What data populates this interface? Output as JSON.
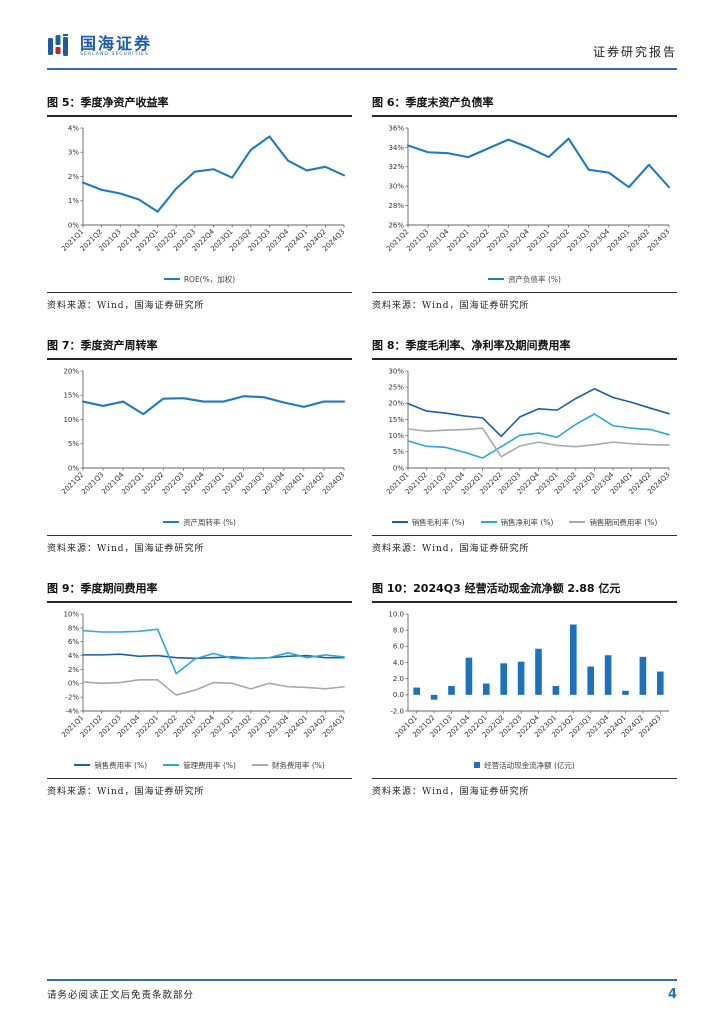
{
  "header": {
    "brand_cn": "国海证券",
    "brand_en": "SEALAND SECURITIES",
    "report_type": "证券研究报告",
    "accent_color": "#2A6DB8",
    "logo_blue": "#1B5BA8",
    "logo_red": "#C8201B"
  },
  "source_note": "资料来源：Wind，国海证券研究所",
  "footer": {
    "disclaimer": "请务必阅读正文后免责条款部分",
    "page_number": "4"
  },
  "chart_data": [
    {
      "type": "line",
      "title": "图 5：季度净资产收益率",
      "categories": [
        "2021Q1",
        "2021Q2",
        "2021Q3",
        "2021Q4",
        "2022Q1",
        "2022Q2",
        "2022Q3",
        "2022Q4",
        "2023Q1",
        "2023Q2",
        "2023Q3",
        "2023Q4",
        "2024Q1",
        "2024Q2",
        "2024Q3"
      ],
      "ylim": [
        0,
        4
      ],
      "yticks": [
        {
          "v": 0,
          "label": "0%"
        },
        {
          "v": 1,
          "label": "1%"
        },
        {
          "v": 2,
          "label": "2%"
        },
        {
          "v": 3,
          "label": "3%"
        },
        {
          "v": 4,
          "label": "4%"
        }
      ],
      "grid": false,
      "legend_position": "bottom",
      "series": [
        {
          "name": "ROE(%，加权)",
          "color": "#1F7AC4",
          "marker": "line",
          "values": [
            1.75,
            1.45,
            1.3,
            1.05,
            0.55,
            1.5,
            2.2,
            2.3,
            1.95,
            3.1,
            3.65,
            2.65,
            2.25,
            2.4,
            2.05
          ]
        }
      ]
    },
    {
      "type": "line",
      "title": "图 6：季度末资产负债率",
      "categories": [
        "2021Q2",
        "2021Q3",
        "2021Q4",
        "2022Q1",
        "2022Q2",
        "2022Q3",
        "2022Q4",
        "2023Q1",
        "2023Q2",
        "2023Q3",
        "2023Q4",
        "2024Q1",
        "2024Q2",
        "2024Q3"
      ],
      "ylim": [
        26,
        36
      ],
      "yticks": [
        {
          "v": 26,
          "label": "26%"
        },
        {
          "v": 28,
          "label": "28%"
        },
        {
          "v": 30,
          "label": "30%"
        },
        {
          "v": 32,
          "label": "32%"
        },
        {
          "v": 34,
          "label": "34%"
        },
        {
          "v": 36,
          "label": "36%"
        }
      ],
      "grid": false,
      "legend_position": "bottom",
      "series": [
        {
          "name": "资产负债率 (%)",
          "color": "#1F7AC4",
          "marker": "line",
          "values": [
            34.2,
            33.5,
            33.4,
            33.0,
            33.9,
            34.8,
            34.0,
            33.0,
            34.9,
            31.7,
            31.4,
            29.9,
            32.2,
            29.9
          ]
        }
      ]
    },
    {
      "type": "line",
      "title": "图 7：季度资产周转率",
      "categories": [
        "2021Q2",
        "2021Q3",
        "2021Q4",
        "2022Q1",
        "2022Q2",
        "2022Q3",
        "2022Q4",
        "2023Q1",
        "2023Q2",
        "2023Q3",
        "2023Q4",
        "2024Q1",
        "2024Q2",
        "2024Q3"
      ],
      "ylim": [
        0,
        20
      ],
      "yticks": [
        {
          "v": 0,
          "label": "0%"
        },
        {
          "v": 5,
          "label": "5%"
        },
        {
          "v": 10,
          "label": "10%"
        },
        {
          "v": 15,
          "label": "15%"
        },
        {
          "v": 20,
          "label": "20%"
        }
      ],
      "grid": false,
      "legend_position": "bottom",
      "series": [
        {
          "name": "资产周转率 (%)",
          "color": "#1F7AC4",
          "marker": "line",
          "values": [
            13.7,
            12.8,
            13.7,
            11.1,
            14.3,
            14.4,
            13.7,
            13.7,
            14.8,
            14.6,
            13.5,
            12.6,
            13.7,
            13.7
          ]
        }
      ]
    },
    {
      "type": "line",
      "title": "图 8：季度毛利率、净利率及期间费用率",
      "categories": [
        "2021Q1",
        "2021Q2",
        "2021Q3",
        "2021Q4",
        "2022Q1",
        "2022Q2",
        "2022Q3",
        "2022Q4",
        "2023Q1",
        "2023Q2",
        "2023Q3",
        "2023Q4",
        "2024Q1",
        "2024Q2",
        "2024Q3"
      ],
      "ylim": [
        0,
        30
      ],
      "yticks": [
        {
          "v": 0,
          "label": "0%"
        },
        {
          "v": 5,
          "label": "5%"
        },
        {
          "v": 10,
          "label": "10%"
        },
        {
          "v": 15,
          "label": "15%"
        },
        {
          "v": 20,
          "label": "20%"
        },
        {
          "v": 25,
          "label": "25%"
        },
        {
          "v": 30,
          "label": "30%"
        }
      ],
      "grid": false,
      "legend_position": "bottom",
      "series": [
        {
          "name": "销售毛利率 (%)",
          "color": "#1C5EA8",
          "marker": "line",
          "values": [
            19.9,
            17.6,
            17.0,
            16.1,
            15.5,
            9.8,
            15.8,
            18.3,
            17.9,
            21.5,
            24.5,
            21.8,
            20.3,
            18.5,
            16.8
          ]
        },
        {
          "name": "销售净利率 (%)",
          "color": "#29A8E0",
          "marker": "line",
          "values": [
            8.4,
            6.7,
            6.4,
            4.9,
            3.1,
            6.6,
            10.1,
            10.8,
            9.5,
            13.5,
            16.7,
            13.1,
            12.3,
            11.9,
            10.3
          ]
        },
        {
          "name": "销售期间费用率 (%)",
          "color": "#A9A9A9",
          "marker": "line",
          "values": [
            12.1,
            11.4,
            11.7,
            11.9,
            12.3,
            3.5,
            6.8,
            8.0,
            7.0,
            6.6,
            7.2,
            8.0,
            7.5,
            7.2,
            7.1
          ]
        }
      ]
    },
    {
      "type": "line",
      "title": "图 9：季度期间费用率",
      "categories": [
        "2021Q1",
        "2021Q2",
        "2021Q3",
        "2021Q4",
        "2022Q1",
        "2022Q2",
        "2022Q3",
        "2022Q4",
        "2023Q1",
        "2023Q2",
        "2023Q3",
        "2023Q4",
        "2024Q1",
        "2024Q2",
        "2024Q3"
      ],
      "ylim": [
        -4,
        10
      ],
      "yticks": [
        {
          "v": -4,
          "label": "-4%"
        },
        {
          "v": -2,
          "label": "-2%"
        },
        {
          "v": 0,
          "label": "0%"
        },
        {
          "v": 2,
          "label": "2%"
        },
        {
          "v": 4,
          "label": "4%"
        },
        {
          "v": 6,
          "label": "6%"
        },
        {
          "v": 8,
          "label": "8%"
        },
        {
          "v": 10,
          "label": "10%"
        }
      ],
      "grid": false,
      "legend_position": "bottom",
      "series": [
        {
          "name": "销售费用率 (%)",
          "color": "#1C5EA8",
          "marker": "line",
          "values": [
            4.1,
            4.1,
            4.2,
            3.9,
            4.0,
            3.7,
            3.6,
            3.7,
            3.8,
            3.6,
            3.7,
            3.9,
            4.0,
            3.7,
            3.7
          ]
        },
        {
          "name": "管理费用率 (%)",
          "color": "#29A8E0",
          "marker": "line",
          "values": [
            7.6,
            7.4,
            7.4,
            7.5,
            7.8,
            1.4,
            3.5,
            4.3,
            3.6,
            3.6,
            3.7,
            4.4,
            3.7,
            4.1,
            3.8
          ]
        },
        {
          "name": "财务费用率 (%)",
          "color": "#A9A9A9",
          "marker": "line",
          "values": [
            0.2,
            0.0,
            0.1,
            0.5,
            0.5,
            -1.7,
            -1.0,
            0.1,
            0.0,
            -0.8,
            0.0,
            -0.5,
            -0.6,
            -0.8,
            -0.5
          ]
        }
      ]
    },
    {
      "type": "bar",
      "title": "图 10：2024Q3 经营活动现金流净额 2.88 亿元",
      "categories": [
        "2021Q1",
        "2021Q2",
        "2021Q3",
        "2021Q4",
        "2022Q1",
        "2022Q2",
        "2022Q3",
        "2022Q4",
        "2023Q1",
        "2023Q2",
        "2023Q3",
        "2023Q4",
        "2024Q1",
        "2024Q2",
        "2024Q3"
      ],
      "ylim": [
        -2,
        10
      ],
      "yticks": [
        {
          "v": -2,
          "label": "-2.0"
        },
        {
          "v": 0,
          "label": "0.0"
        },
        {
          "v": 2,
          "label": "2.0"
        },
        {
          "v": 4,
          "label": "4.0"
        },
        {
          "v": 6,
          "label": "6.0"
        },
        {
          "v": 8,
          "label": "8.0"
        },
        {
          "v": 10,
          "label": "10.0"
        }
      ],
      "grid": false,
      "legend_position": "bottom",
      "series": [
        {
          "name": "经营活动现金流净额 (亿元)",
          "color": "#1B72BE",
          "marker": "square",
          "values": [
            0.9,
            -0.6,
            1.1,
            4.6,
            1.4,
            3.9,
            4.1,
            5.7,
            1.1,
            8.7,
            3.5,
            4.9,
            0.5,
            4.7,
            2.88
          ]
        }
      ]
    }
  ]
}
